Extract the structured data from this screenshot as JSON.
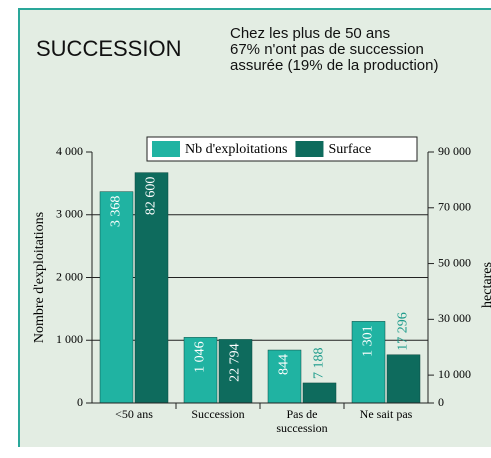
{
  "chart_data": {
    "type": "bar",
    "title": "SUCCESSION",
    "subtitle": "Chez les plus de 50 ans\n67% n'ont pas de succession\nassurée (19% de la production)",
    "categories": [
      "<50 ans",
      "Succession",
      "Pas de\nsuccession",
      "Ne sait pas"
    ],
    "series": [
      {
        "name": "Nb d'exploitations",
        "color": "#20b3a2",
        "values": [
          3368,
          1046,
          844,
          1301
        ],
        "value_labels": [
          "3 368",
          "1 046",
          "844",
          "1 301"
        ]
      },
      {
        "name": "Surface",
        "color": "#0e6b5d",
        "axis": "y2",
        "values": [
          82600,
          22794,
          7188,
          17296
        ],
        "value_labels": [
          "82 600",
          "22 794",
          "7 188",
          "17 296"
        ]
      }
    ],
    "ylabel": "Nombre d'exploitations",
    "y2label": "hectares",
    "ylim": [
      0,
      4000
    ],
    "yticks": [
      0,
      {
        "value": 1000,
        "label": "1 000"
      },
      {
        "value": 2000,
        "label": "2 000"
      },
      {
        "value": 3000,
        "label": "3 000"
      },
      {
        "value": 4000,
        "label": "4 000"
      }
    ],
    "y2lim": [
      0,
      90000
    ],
    "y2ticks": [
      0,
      {
        "value": 10000,
        "label": "10 000"
      },
      {
        "value": 30000,
        "label": "30 000"
      },
      {
        "value": 50000,
        "label": "50 000"
      },
      {
        "value": 70000,
        "label": "70 000"
      },
      {
        "value": 90000,
        "label": "90 000"
      }
    ],
    "grid": true,
    "legend": "top"
  }
}
